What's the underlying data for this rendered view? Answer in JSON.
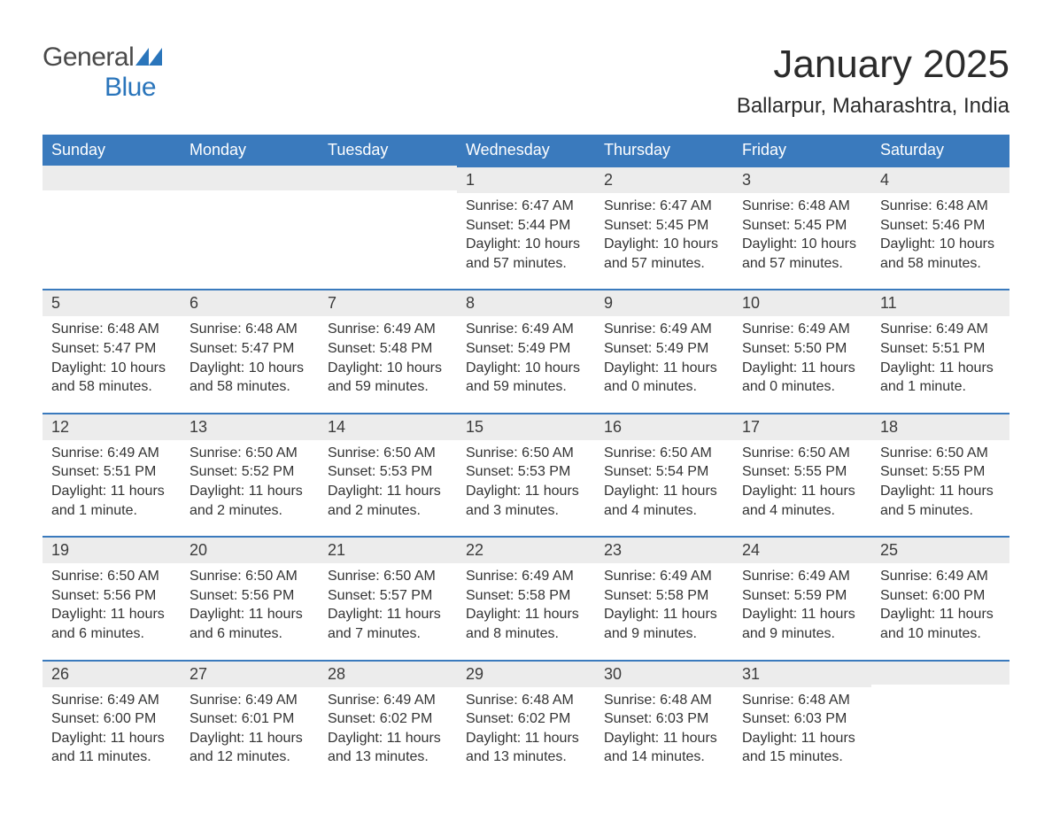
{
  "logo": {
    "general": "General",
    "blue": "Blue"
  },
  "title": "January 2025",
  "location": "Ballarpur, Maharashtra, India",
  "colors": {
    "header_bg": "#3a7abd",
    "header_text": "#ffffff",
    "daynum_bg": "#ececec",
    "border_top": "#3a7abd",
    "body_text": "#333333",
    "logo_blue": "#2a75bb"
  },
  "weekdays": [
    "Sunday",
    "Monday",
    "Tuesday",
    "Wednesday",
    "Thursday",
    "Friday",
    "Saturday"
  ],
  "weeks": [
    [
      null,
      null,
      null,
      {
        "n": "1",
        "sunrise": "6:47 AM",
        "sunset": "5:44 PM",
        "daylight": "10 hours and 57 minutes."
      },
      {
        "n": "2",
        "sunrise": "6:47 AM",
        "sunset": "5:45 PM",
        "daylight": "10 hours and 57 minutes."
      },
      {
        "n": "3",
        "sunrise": "6:48 AM",
        "sunset": "5:45 PM",
        "daylight": "10 hours and 57 minutes."
      },
      {
        "n": "4",
        "sunrise": "6:48 AM",
        "sunset": "5:46 PM",
        "daylight": "10 hours and 58 minutes."
      }
    ],
    [
      {
        "n": "5",
        "sunrise": "6:48 AM",
        "sunset": "5:47 PM",
        "daylight": "10 hours and 58 minutes."
      },
      {
        "n": "6",
        "sunrise": "6:48 AM",
        "sunset": "5:47 PM",
        "daylight": "10 hours and 58 minutes."
      },
      {
        "n": "7",
        "sunrise": "6:49 AM",
        "sunset": "5:48 PM",
        "daylight": "10 hours and 59 minutes."
      },
      {
        "n": "8",
        "sunrise": "6:49 AM",
        "sunset": "5:49 PM",
        "daylight": "10 hours and 59 minutes."
      },
      {
        "n": "9",
        "sunrise": "6:49 AM",
        "sunset": "5:49 PM",
        "daylight": "11 hours and 0 minutes."
      },
      {
        "n": "10",
        "sunrise": "6:49 AM",
        "sunset": "5:50 PM",
        "daylight": "11 hours and 0 minutes."
      },
      {
        "n": "11",
        "sunrise": "6:49 AM",
        "sunset": "5:51 PM",
        "daylight": "11 hours and 1 minute."
      }
    ],
    [
      {
        "n": "12",
        "sunrise": "6:49 AM",
        "sunset": "5:51 PM",
        "daylight": "11 hours and 1 minute."
      },
      {
        "n": "13",
        "sunrise": "6:50 AM",
        "sunset": "5:52 PM",
        "daylight": "11 hours and 2 minutes."
      },
      {
        "n": "14",
        "sunrise": "6:50 AM",
        "sunset": "5:53 PM",
        "daylight": "11 hours and 2 minutes."
      },
      {
        "n": "15",
        "sunrise": "6:50 AM",
        "sunset": "5:53 PM",
        "daylight": "11 hours and 3 minutes."
      },
      {
        "n": "16",
        "sunrise": "6:50 AM",
        "sunset": "5:54 PM",
        "daylight": "11 hours and 4 minutes."
      },
      {
        "n": "17",
        "sunrise": "6:50 AM",
        "sunset": "5:55 PM",
        "daylight": "11 hours and 4 minutes."
      },
      {
        "n": "18",
        "sunrise": "6:50 AM",
        "sunset": "5:55 PM",
        "daylight": "11 hours and 5 minutes."
      }
    ],
    [
      {
        "n": "19",
        "sunrise": "6:50 AM",
        "sunset": "5:56 PM",
        "daylight": "11 hours and 6 minutes."
      },
      {
        "n": "20",
        "sunrise": "6:50 AM",
        "sunset": "5:56 PM",
        "daylight": "11 hours and 6 minutes."
      },
      {
        "n": "21",
        "sunrise": "6:50 AM",
        "sunset": "5:57 PM",
        "daylight": "11 hours and 7 minutes."
      },
      {
        "n": "22",
        "sunrise": "6:49 AM",
        "sunset": "5:58 PM",
        "daylight": "11 hours and 8 minutes."
      },
      {
        "n": "23",
        "sunrise": "6:49 AM",
        "sunset": "5:58 PM",
        "daylight": "11 hours and 9 minutes."
      },
      {
        "n": "24",
        "sunrise": "6:49 AM",
        "sunset": "5:59 PM",
        "daylight": "11 hours and 9 minutes."
      },
      {
        "n": "25",
        "sunrise": "6:49 AM",
        "sunset": "6:00 PM",
        "daylight": "11 hours and 10 minutes."
      }
    ],
    [
      {
        "n": "26",
        "sunrise": "6:49 AM",
        "sunset": "6:00 PM",
        "daylight": "11 hours and 11 minutes."
      },
      {
        "n": "27",
        "sunrise": "6:49 AM",
        "sunset": "6:01 PM",
        "daylight": "11 hours and 12 minutes."
      },
      {
        "n": "28",
        "sunrise": "6:49 AM",
        "sunset": "6:02 PM",
        "daylight": "11 hours and 13 minutes."
      },
      {
        "n": "29",
        "sunrise": "6:48 AM",
        "sunset": "6:02 PM",
        "daylight": "11 hours and 13 minutes."
      },
      {
        "n": "30",
        "sunrise": "6:48 AM",
        "sunset": "6:03 PM",
        "daylight": "11 hours and 14 minutes."
      },
      {
        "n": "31",
        "sunrise": "6:48 AM",
        "sunset": "6:03 PM",
        "daylight": "11 hours and 15 minutes."
      },
      null
    ]
  ],
  "labels": {
    "sunrise": "Sunrise: ",
    "sunset": "Sunset: ",
    "daylight": "Daylight: "
  }
}
